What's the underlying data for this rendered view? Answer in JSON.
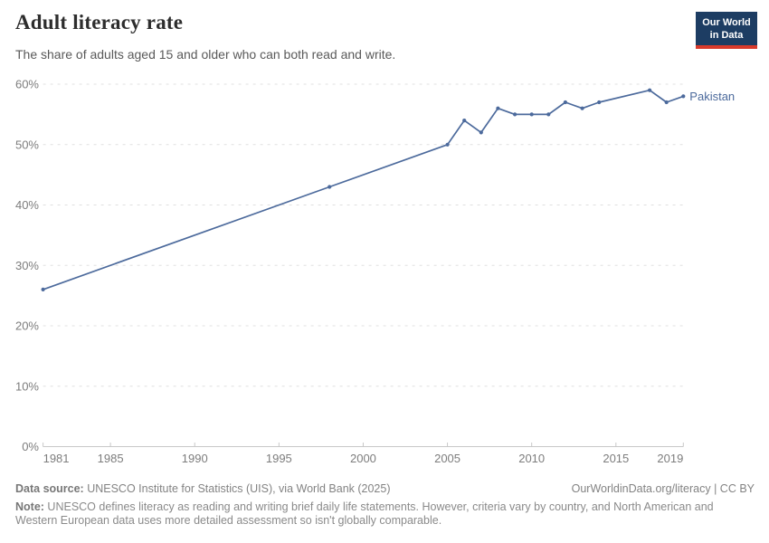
{
  "header": {
    "title": "Adult literacy rate",
    "subtitle": "The share of adults aged 15 and older who can both read and write.",
    "logo": {
      "line1": "Our World",
      "line2": "in Data",
      "bg_color": "#1d3d63",
      "bar_color": "#d93a2b"
    }
  },
  "chart_data": {
    "type": "line",
    "title": "Adult literacy rate",
    "subtitle": "The share of adults aged 15 and older who can both read and write.",
    "xlabel": "",
    "ylabel": "",
    "xlim": [
      1981,
      2019
    ],
    "ylim": [
      0,
      60
    ],
    "xticks": [
      1981,
      1985,
      1990,
      1995,
      2000,
      2005,
      2010,
      2015,
      2019
    ],
    "yticks": [
      0,
      10,
      20,
      30,
      40,
      50,
      60
    ],
    "ytick_suffix": "%",
    "grid": "horizontal-dashed",
    "legend_position": "end-of-line-label",
    "series": [
      {
        "name": "Pakistan",
        "color": "#4c6a9c",
        "x": [
          1981,
          1998,
          2005,
          2006,
          2007,
          2008,
          2009,
          2010,
          2011,
          2012,
          2013,
          2014,
          2017,
          2018,
          2019
        ],
        "y": [
          26,
          43,
          50,
          54,
          52,
          56,
          55,
          55,
          55,
          57,
          56,
          57,
          59,
          57,
          58
        ]
      }
    ]
  },
  "colors": {
    "gridline": "#e0e0e0",
    "axis_line": "#c8c8c8",
    "tick_label": "#7d7d7d"
  },
  "footer": {
    "source_label": "Data source:",
    "source_text": " UNESCO Institute for Statistics (UIS), via World Bank (2025)",
    "license_text": "OurWorldinData.org/literacy | CC BY",
    "note_label": "Note:",
    "note_text": " UNESCO defines literacy as reading and writing brief daily life statements. However, criteria vary by country, and North American and Western European data uses more detailed assessment so isn't globally comparable."
  }
}
